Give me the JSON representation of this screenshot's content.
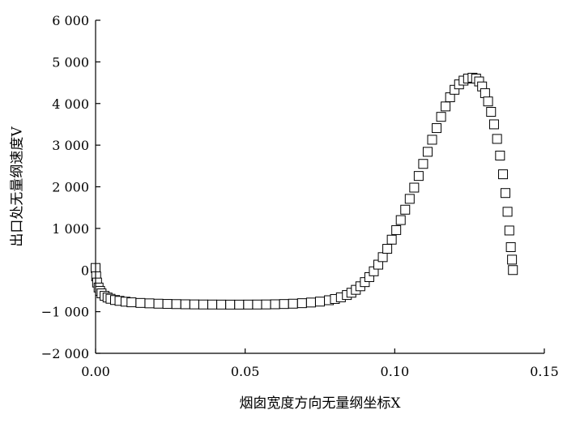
{
  "chart_data": {
    "type": "scatter",
    "xlabel": "烟囱宽度方向无量纲坐标X",
    "ylabel": "出口处无量纲速度V",
    "xlim": [
      0,
      0.15
    ],
    "ylim": [
      -2000,
      6000
    ],
    "x_ticks": [
      {
        "value": 0,
        "label": "0.00"
      },
      {
        "value": 0.05,
        "label": "0.05"
      },
      {
        "value": 0.1,
        "label": "0.10"
      },
      {
        "value": 0.15,
        "label": "0.15"
      }
    ],
    "y_ticks": [
      {
        "value": -2000,
        "label": "−2 000"
      },
      {
        "value": -1000,
        "label": "−1 000"
      },
      {
        "value": 0,
        "label": "0"
      },
      {
        "value": 1000,
        "label": "1 000"
      },
      {
        "value": 2000,
        "label": "2 000"
      },
      {
        "value": 3000,
        "label": "3 000"
      },
      {
        "value": 4000,
        "label": "4 000"
      },
      {
        "value": 5000,
        "label": "5 000"
      },
      {
        "value": 6000,
        "label": "6 000"
      }
    ],
    "marker": "open-square",
    "grid": false,
    "series": [
      {
        "points": [
          [
            0.0,
            50
          ],
          [
            0.0002,
            -150
          ],
          [
            0.0005,
            -300
          ],
          [
            0.001,
            -420
          ],
          [
            0.0015,
            -500
          ],
          [
            0.002,
            -560
          ],
          [
            0.003,
            -620
          ],
          [
            0.004,
            -660
          ],
          [
            0.005,
            -690
          ],
          [
            0.0065,
            -720
          ],
          [
            0.008,
            -740
          ],
          [
            0.01,
            -760
          ],
          [
            0.012,
            -775
          ],
          [
            0.015,
            -790
          ],
          [
            0.018,
            -800
          ],
          [
            0.021,
            -808
          ],
          [
            0.024,
            -814
          ],
          [
            0.027,
            -818
          ],
          [
            0.03,
            -822
          ],
          [
            0.033,
            -825
          ],
          [
            0.036,
            -827
          ],
          [
            0.039,
            -828
          ],
          [
            0.042,
            -829
          ],
          [
            0.045,
            -830
          ],
          [
            0.048,
            -830
          ],
          [
            0.051,
            -829
          ],
          [
            0.054,
            -828
          ],
          [
            0.057,
            -826
          ],
          [
            0.06,
            -822
          ],
          [
            0.063,
            -816
          ],
          [
            0.066,
            -808
          ],
          [
            0.069,
            -796
          ],
          [
            0.072,
            -780
          ],
          [
            0.075,
            -758
          ],
          [
            0.078,
            -725
          ],
          [
            0.08,
            -695
          ],
          [
            0.082,
            -655
          ],
          [
            0.084,
            -600
          ],
          [
            0.0855,
            -545
          ],
          [
            0.087,
            -475
          ],
          [
            0.0885,
            -390
          ],
          [
            0.09,
            -290
          ],
          [
            0.0915,
            -170
          ],
          [
            0.093,
            -30
          ],
          [
            0.0945,
            130
          ],
          [
            0.096,
            310
          ],
          [
            0.0975,
            510
          ],
          [
            0.099,
            730
          ],
          [
            0.1005,
            960
          ],
          [
            0.102,
            1200
          ],
          [
            0.1035,
            1450
          ],
          [
            0.105,
            1710
          ],
          [
            0.1065,
            1980
          ],
          [
            0.108,
            2260
          ],
          [
            0.1095,
            2550
          ],
          [
            0.111,
            2840
          ],
          [
            0.1125,
            3130
          ],
          [
            0.114,
            3410
          ],
          [
            0.1155,
            3680
          ],
          [
            0.117,
            3930
          ],
          [
            0.1185,
            4150
          ],
          [
            0.12,
            4330
          ],
          [
            0.1215,
            4460
          ],
          [
            0.123,
            4550
          ],
          [
            0.1245,
            4600
          ],
          [
            0.126,
            4620
          ],
          [
            0.1272,
            4600
          ],
          [
            0.1282,
            4530
          ],
          [
            0.1292,
            4410
          ],
          [
            0.1302,
            4250
          ],
          [
            0.1312,
            4050
          ],
          [
            0.1322,
            3800
          ],
          [
            0.1332,
            3500
          ],
          [
            0.1342,
            3150
          ],
          [
            0.1352,
            2750
          ],
          [
            0.1362,
            2300
          ],
          [
            0.137,
            1850
          ],
          [
            0.1377,
            1400
          ],
          [
            0.1383,
            950
          ],
          [
            0.1388,
            550
          ],
          [
            0.1392,
            250
          ],
          [
            0.1395,
            0
          ]
        ]
      }
    ]
  }
}
